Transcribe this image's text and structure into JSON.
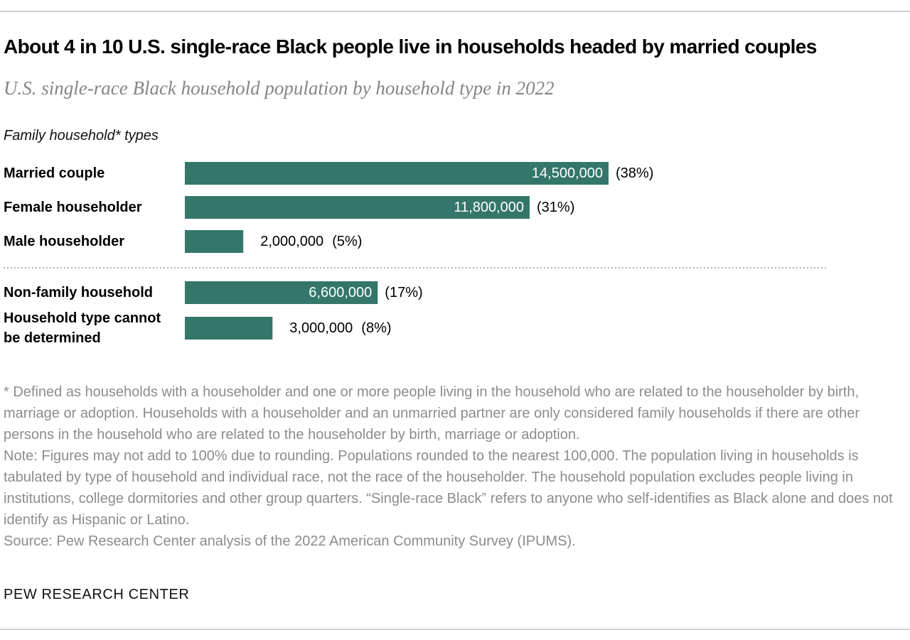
{
  "chart_data": {
    "type": "bar",
    "orientation": "horizontal",
    "title": "About 4 in 10 U.S. single-race Black people live in households headed by married couples",
    "subtitle": "U.S. single-race Black household population by household type in 2022",
    "group_label": "Family household* types",
    "categories": [
      "Married couple",
      "Female householder",
      "Male householder",
      "Non-family household",
      "Household type cannot be determined"
    ],
    "category_lines": [
      [
        "Married couple"
      ],
      [
        "Female householder"
      ],
      [
        "Male householder"
      ],
      [
        "Non-family household"
      ],
      [
        "Household type cannot",
        "be determined"
      ]
    ],
    "values": [
      14500000,
      11800000,
      2000000,
      6600000,
      3000000
    ],
    "value_labels": [
      "14,500,000",
      "11,800,000",
      "2,000,000",
      "6,600,000",
      "3,000,000"
    ],
    "percent_labels": [
      "(38%)",
      "(31%)",
      "(5%)",
      "(17%)",
      "(8%)"
    ],
    "label_inside": [
      true,
      true,
      false,
      true,
      false
    ],
    "separator_after_index": 2,
    "bar_color": "#34776a",
    "xlim": [
      0,
      14500000
    ],
    "grid": false,
    "legend": "none"
  },
  "footnotes": {
    "definition": "* Defined as households with a householder and one or more people living in the household who are related to the householder by birth, marriage or adoption. Households with a householder and an unmarried partner are only considered family households if there are other persons in the household who are related to the householder by birth, marriage or adoption.",
    "note": "Note: Figures may not add to 100% due to rounding. Populations rounded to the nearest 100,000. The population living in households is tabulated by type of household and individual race, not the race of the householder. The household population excludes people living in institutions, college dormitories and other group quarters. “Single-race Black” refers to anyone who self-identifies as Black alone and does not identify as Hispanic or Latino.",
    "source": "Source: Pew Research Center analysis of the 2022 American Community Survey (IPUMS)."
  },
  "brand": "PEW RESEARCH CENTER"
}
